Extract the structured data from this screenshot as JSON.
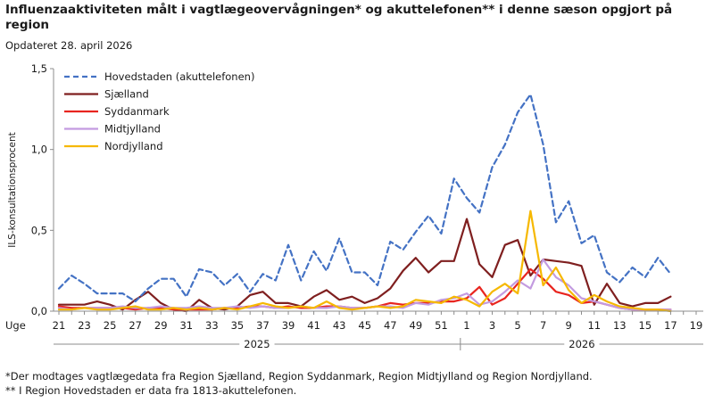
{
  "header": {
    "title": "Influenzaaktiviteten målt i vagtlægeovervågningen* og akuttelefonen** i denne sæson opgjort på region",
    "subtitle": "Opdateret 28. april 2026"
  },
  "footnotes": {
    "line1": "*Der modtages vagtlægedata fra Region Sjælland, Region Syddanmark, Region Midtjylland og Region Nordjylland.",
    "line2": "** I Region Hovedstaden er data fra 1813-akuttelefonen."
  },
  "chart_data": {
    "type": "line",
    "ylabel": "ILS-konsultationsprocent",
    "xlabel_prefix": "Uge",
    "ylim": [
      0,
      1.5
    ],
    "yticks": [
      "0,0",
      "0,5",
      "1,0",
      "1,5"
    ],
    "x_tick_labels": [
      "21",
      "23",
      "25",
      "27",
      "29",
      "31",
      "33",
      "35",
      "37",
      "39",
      "41",
      "43",
      "45",
      "47",
      "49",
      "51",
      "1",
      "3",
      "5",
      "7",
      "9",
      "11",
      "13",
      "15",
      "17",
      "19"
    ],
    "year_labels": [
      "2025",
      "2026"
    ],
    "legend_position": "top-left",
    "weeks": [
      "21",
      "22",
      "23",
      "24",
      "25",
      "26",
      "27",
      "28",
      "29",
      "30",
      "31",
      "32",
      "33",
      "34",
      "35",
      "36",
      "37",
      "38",
      "39",
      "40",
      "41",
      "42",
      "43",
      "44",
      "45",
      "46",
      "47",
      "48",
      "49",
      "50",
      "51",
      "52",
      "1",
      "2",
      "3",
      "4",
      "5",
      "6",
      "7",
      "8",
      "9",
      "10",
      "11",
      "12",
      "13",
      "14",
      "15",
      "16",
      "17",
      "18",
      "19"
    ],
    "series": [
      {
        "name": "Hovedstaden (akuttelefonen)",
        "color": "#4472c4",
        "dashed": true,
        "values": [
          0.14,
          0.22,
          0.17,
          0.11,
          0.11,
          0.11,
          0.06,
          0.14,
          0.2,
          0.2,
          0.09,
          0.26,
          0.24,
          0.16,
          0.23,
          0.12,
          0.23,
          0.19,
          0.41,
          0.19,
          0.37,
          0.25,
          0.45,
          0.24,
          0.24,
          0.16,
          0.43,
          0.38,
          0.49,
          0.59,
          0.48,
          0.82,
          0.7,
          0.61,
          0.89,
          1.03,
          1.23,
          1.34,
          1.03,
          0.55,
          0.68,
          0.42,
          0.47,
          0.24,
          0.18,
          0.27,
          0.21,
          0.33,
          0.23,
          null,
          null
        ]
      },
      {
        "name": "Sjælland",
        "color": "#7f1f1f",
        "dashed": false,
        "values": [
          0.04,
          0.04,
          0.04,
          0.06,
          0.04,
          0.01,
          0.07,
          0.12,
          0.05,
          0.01,
          0.0,
          0.07,
          0.02,
          0.01,
          0.03,
          0.1,
          0.12,
          0.05,
          0.05,
          0.03,
          0.09,
          0.13,
          0.07,
          0.09,
          0.05,
          0.08,
          0.14,
          0.25,
          0.33,
          0.24,
          0.31,
          0.31,
          0.57,
          0.29,
          0.21,
          0.41,
          0.44,
          0.22,
          0.32,
          0.31,
          0.3,
          0.28,
          0.04,
          0.17,
          0.05,
          0.03,
          0.05,
          0.05,
          0.09,
          null,
          null
        ]
      },
      {
        "name": "Syddanmark",
        "color": "#e8251f",
        "dashed": false,
        "values": [
          0.03,
          0.02,
          0.02,
          0.02,
          0.02,
          0.02,
          0.01,
          0.02,
          0.02,
          0.01,
          0.01,
          0.01,
          0.01,
          0.02,
          0.02,
          0.03,
          0.03,
          0.02,
          0.03,
          0.02,
          0.02,
          0.03,
          0.03,
          0.02,
          0.02,
          0.03,
          0.05,
          0.04,
          0.05,
          0.05,
          0.06,
          0.06,
          0.08,
          0.15,
          0.04,
          0.08,
          0.17,
          0.26,
          0.2,
          0.12,
          0.1,
          0.05,
          0.06,
          0.04,
          0.02,
          0.01,
          0.01,
          0.01,
          0.01,
          null,
          null
        ]
      },
      {
        "name": "Midtjylland",
        "color": "#c39be0",
        "dashed": false,
        "values": [
          0.02,
          0.01,
          0.02,
          0.02,
          0.02,
          0.03,
          0.02,
          0.02,
          0.03,
          0.02,
          0.02,
          0.03,
          0.02,
          0.02,
          0.03,
          0.02,
          0.03,
          0.02,
          0.02,
          0.03,
          0.02,
          0.02,
          0.03,
          0.02,
          0.02,
          0.03,
          0.03,
          0.02,
          0.05,
          0.04,
          0.07,
          0.08,
          0.11,
          0.04,
          0.06,
          0.12,
          0.19,
          0.14,
          0.32,
          0.21,
          0.16,
          0.08,
          0.06,
          0.04,
          0.02,
          0.01,
          0.01,
          0.01,
          0.01,
          null,
          null
        ]
      },
      {
        "name": "Nordjylland",
        "color": "#f6b800",
        "dashed": false,
        "values": [
          0.01,
          0.01,
          0.02,
          0.01,
          0.01,
          0.02,
          0.03,
          0.01,
          0.01,
          0.02,
          0.01,
          0.02,
          0.01,
          0.02,
          0.01,
          0.03,
          0.05,
          0.03,
          0.02,
          0.03,
          0.02,
          0.06,
          0.02,
          0.01,
          0.02,
          0.03,
          0.02,
          0.03,
          0.07,
          0.06,
          0.05,
          0.09,
          0.07,
          0.03,
          0.12,
          0.17,
          0.11,
          0.62,
          0.16,
          0.27,
          0.13,
          0.05,
          0.1,
          0.06,
          0.03,
          0.02,
          0.01,
          0.01,
          0.0,
          null,
          null
        ]
      }
    ]
  }
}
